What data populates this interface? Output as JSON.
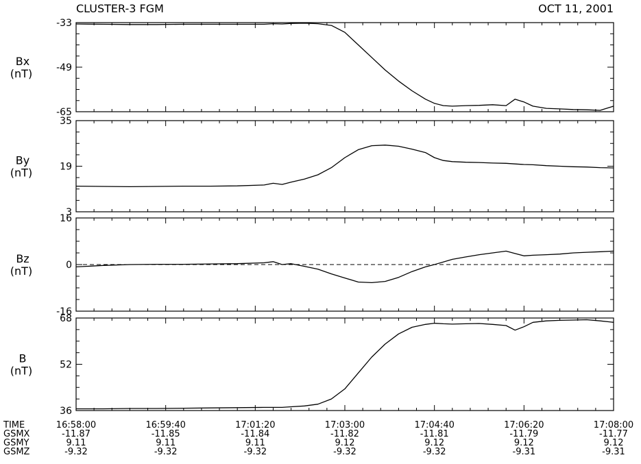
{
  "header": {
    "title": "CLUSTER-3 FGM",
    "date": "OCT 11, 2001"
  },
  "colors": {
    "line": "#000000",
    "background": "#ffffff"
  },
  "chart_data": [
    {
      "type": "line",
      "ylabel": "Bx",
      "unit": "(nT)",
      "yticks": [
        "-33",
        "-49",
        "-65"
      ],
      "ylim": [
        -65,
        -33
      ],
      "x": [
        "16:58:00",
        "16:58:30",
        "16:59:00",
        "16:59:30",
        "17:00:00",
        "17:00:30",
        "17:01:00",
        "17:01:30",
        "17:01:40",
        "17:01:50",
        "17:02:00",
        "17:02:15",
        "17:02:30",
        "17:02:45",
        "17:03:00",
        "17:03:15",
        "17:03:30",
        "17:03:45",
        "17:04:00",
        "17:04:15",
        "17:04:30",
        "17:04:40",
        "17:04:50",
        "17:05:00",
        "17:05:15",
        "17:05:30",
        "17:05:45",
        "17:06:00",
        "17:06:10",
        "17:06:20",
        "17:06:30",
        "17:06:45",
        "17:07:00",
        "17:07:15",
        "17:07:30",
        "17:07:45",
        "17:08:00"
      ],
      "values": [
        -33.5,
        -33.6,
        -33.7,
        -33.7,
        -33.6,
        -33.6,
        -33.6,
        -33.6,
        -33.4,
        -33.5,
        -33.3,
        -33.2,
        -33.4,
        -34.0,
        -36.5,
        -41.0,
        -45.5,
        -50.0,
        -54.0,
        -57.5,
        -60.5,
        -62.0,
        -62.8,
        -63.0,
        -62.8,
        -62.7,
        -62.5,
        -62.8,
        -60.5,
        -61.5,
        -63.0,
        -63.8,
        -64.0,
        -64.2,
        -64.3,
        -64.5,
        -63.0
      ]
    },
    {
      "type": "line",
      "ylabel": "By",
      "unit": "(nT)",
      "yticks": [
        "35",
        "19",
        "3"
      ],
      "ylim": [
        3,
        35
      ],
      "x": [
        "16:58:00",
        "16:58:30",
        "16:59:00",
        "16:59:30",
        "17:00:00",
        "17:00:30",
        "17:01:00",
        "17:01:30",
        "17:01:40",
        "17:01:50",
        "17:02:00",
        "17:02:15",
        "17:02:30",
        "17:02:45",
        "17:03:00",
        "17:03:15",
        "17:03:30",
        "17:03:45",
        "17:04:00",
        "17:04:15",
        "17:04:30",
        "17:04:40",
        "17:04:50",
        "17:05:00",
        "17:05:15",
        "17:05:30",
        "17:05:45",
        "17:06:00",
        "17:06:10",
        "17:06:20",
        "17:06:30",
        "17:06:45",
        "17:07:00",
        "17:07:15",
        "17:07:30",
        "17:07:45",
        "17:08:00"
      ],
      "values": [
        12.0,
        11.9,
        11.8,
        11.9,
        12.0,
        12.0,
        12.1,
        12.4,
        13.0,
        12.6,
        13.4,
        14.5,
        16.0,
        18.5,
        22.0,
        24.8,
        26.2,
        26.4,
        26.0,
        25.0,
        23.8,
        22.0,
        21.0,
        20.6,
        20.4,
        20.3,
        20.1,
        20.0,
        19.8,
        19.6,
        19.5,
        19.2,
        19.0,
        18.8,
        18.7,
        18.5,
        18.4
      ]
    },
    {
      "type": "line",
      "ylabel": "Bz",
      "unit": "(nT)",
      "yticks": [
        "16",
        "0",
        "-16"
      ],
      "ylim": [
        -16,
        16
      ],
      "zero_line": "dashed",
      "x": [
        "16:58:00",
        "16:58:30",
        "16:59:00",
        "16:59:30",
        "17:00:00",
        "17:00:30",
        "17:01:00",
        "17:01:30",
        "17:01:40",
        "17:01:50",
        "17:02:00",
        "17:02:15",
        "17:02:30",
        "17:02:45",
        "17:03:00",
        "17:03:15",
        "17:03:30",
        "17:03:45",
        "17:04:00",
        "17:04:15",
        "17:04:30",
        "17:04:40",
        "17:04:50",
        "17:05:00",
        "17:05:15",
        "17:05:30",
        "17:05:45",
        "17:06:00",
        "17:06:10",
        "17:06:20",
        "17:06:30",
        "17:06:45",
        "17:07:00",
        "17:07:15",
        "17:07:30",
        "17:07:45",
        "17:08:00"
      ],
      "values": [
        -0.8,
        -0.3,
        0.0,
        0.1,
        0.1,
        0.2,
        0.3,
        0.6,
        1.0,
        0.0,
        0.3,
        -0.6,
        -1.6,
        -3.2,
        -4.6,
        -6.0,
        -6.2,
        -5.8,
        -4.4,
        -2.4,
        -0.8,
        0.0,
        0.9,
        1.8,
        2.6,
        3.4,
        4.0,
        4.6,
        3.8,
        3.0,
        3.2,
        3.4,
        3.6,
        4.0,
        4.2,
        4.4,
        4.6
      ]
    },
    {
      "type": "line",
      "ylabel": "B",
      "unit": "(nT)",
      "yticks": [
        "68",
        "52",
        "36"
      ],
      "ylim": [
        36,
        68
      ],
      "x": [
        "16:58:00",
        "16:58:30",
        "16:59:00",
        "16:59:30",
        "17:00:00",
        "17:00:30",
        "17:01:00",
        "17:01:30",
        "17:01:40",
        "17:01:50",
        "17:02:00",
        "17:02:15",
        "17:02:30",
        "17:02:45",
        "17:03:00",
        "17:03:15",
        "17:03:30",
        "17:03:45",
        "17:04:00",
        "17:04:15",
        "17:04:30",
        "17:04:40",
        "17:04:50",
        "17:05:00",
        "17:05:15",
        "17:05:30",
        "17:05:45",
        "17:06:00",
        "17:06:10",
        "17:06:20",
        "17:06:30",
        "17:06:45",
        "17:07:00",
        "17:07:15",
        "17:07:30",
        "17:07:45",
        "17:08:00"
      ],
      "values": [
        36.6,
        36.6,
        36.7,
        36.7,
        36.8,
        36.9,
        37.0,
        37.1,
        37.1,
        37.1,
        37.3,
        37.6,
        38.2,
        40.0,
        43.5,
        49.0,
        54.5,
        59.0,
        62.5,
        64.8,
        65.8,
        66.2,
        66.0,
        65.9,
        66.0,
        66.1,
        65.8,
        65.4,
        63.8,
        65.0,
        66.5,
        67.0,
        67.2,
        67.3,
        67.4,
        67.0,
        66.5
      ]
    }
  ],
  "time_axis": {
    "row_labels": [
      "TIME",
      "GSMX",
      "GSMY",
      "GSMZ"
    ],
    "columns": [
      {
        "time": "16:58:00",
        "gsmx": "-11.87",
        "gsmy": "9.11",
        "gsmz": "-9.32"
      },
      {
        "time": "16:59:40",
        "gsmx": "-11.85",
        "gsmy": "9.11",
        "gsmz": "-9.32"
      },
      {
        "time": "17:01:20",
        "gsmx": "-11.84",
        "gsmy": "9.11",
        "gsmz": "-9.32"
      },
      {
        "time": "17:03:00",
        "gsmx": "-11.82",
        "gsmy": "9.12",
        "gsmz": "-9.32"
      },
      {
        "time": "17:04:40",
        "gsmx": "-11.81",
        "gsmy": "9.12",
        "gsmz": "-9.32"
      },
      {
        "time": "17:06:20",
        "gsmx": "-11.79",
        "gsmy": "9.12",
        "gsmz": "-9.31"
      },
      {
        "time": "17:08:00",
        "gsmx": "-11.77",
        "gsmy": "9.12",
        "gsmz": "-9.31"
      }
    ]
  }
}
